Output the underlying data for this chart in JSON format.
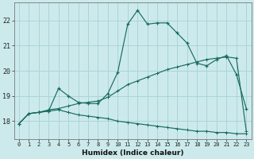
{
  "xlabel": "Humidex (Indice chaleur)",
  "background_color": "#cceaec",
  "grid_color": "#aad4d8",
  "line_color": "#1a6b60",
  "x_values": [
    0,
    1,
    2,
    3,
    4,
    5,
    6,
    7,
    8,
    9,
    10,
    11,
    12,
    13,
    14,
    15,
    16,
    17,
    18,
    19,
    20,
    21,
    22,
    23
  ],
  "line1_y": [
    17.9,
    18.3,
    18.35,
    18.4,
    18.45,
    18.35,
    18.25,
    18.2,
    18.15,
    18.1,
    18.0,
    17.95,
    17.9,
    17.85,
    17.8,
    17.75,
    17.7,
    17.65,
    17.6,
    17.6,
    17.55,
    17.55,
    17.5,
    17.5
  ],
  "line2_y": [
    17.9,
    18.3,
    18.35,
    18.4,
    19.3,
    19.0,
    18.75,
    18.7,
    18.7,
    19.1,
    19.95,
    21.85,
    22.4,
    21.85,
    21.9,
    21.9,
    21.5,
    21.1,
    20.3,
    20.2,
    20.45,
    20.6,
    19.85,
    18.5
  ],
  "line3_y": [
    17.9,
    18.3,
    18.35,
    18.45,
    18.5,
    18.6,
    18.7,
    18.75,
    18.8,
    18.95,
    19.2,
    19.45,
    19.6,
    19.75,
    19.9,
    20.05,
    20.15,
    20.25,
    20.35,
    20.45,
    20.5,
    20.55,
    20.5,
    17.6
  ],
  "ylim": [
    17.3,
    22.7
  ],
  "yticks": [
    18,
    19,
    20,
    21,
    22
  ],
  "xlim": [
    -0.5,
    23.5
  ],
  "xticks": [
    0,
    1,
    2,
    3,
    4,
    5,
    6,
    7,
    8,
    9,
    10,
    11,
    12,
    13,
    14,
    15,
    16,
    17,
    18,
    19,
    20,
    21,
    22,
    23
  ]
}
